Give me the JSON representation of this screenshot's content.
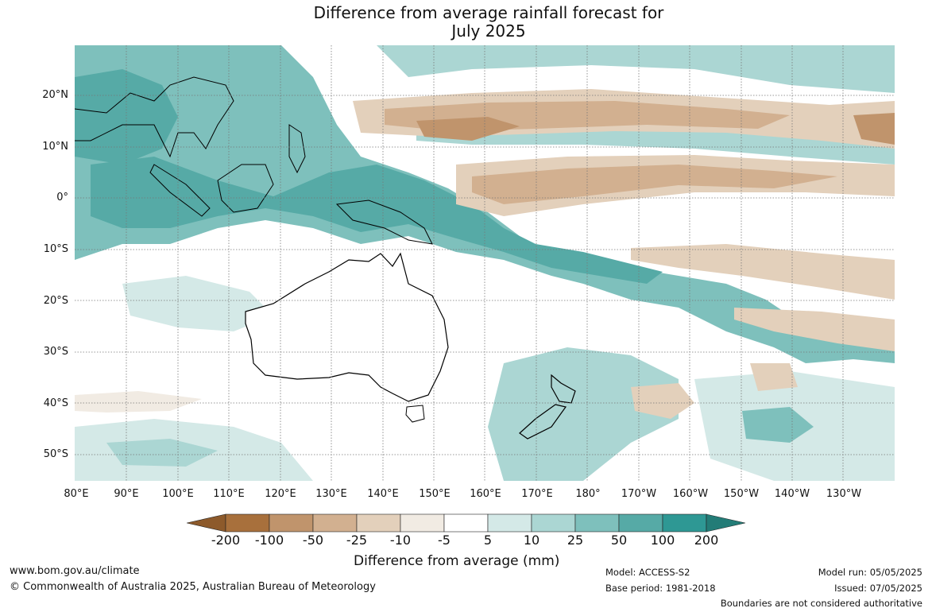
{
  "title": {
    "line1": "Difference from average rainfall forecast for",
    "line2": "July 2025"
  },
  "lat_labels": [
    "20°N",
    "10°N",
    "0°",
    "10°S",
    "20°S",
    "30°S",
    "40°S",
    "50°S"
  ],
  "lon_labels": [
    "80°E",
    "90°E",
    "100°E",
    "110°E",
    "120°E",
    "130°E",
    "140°E",
    "150°E",
    "160°E",
    "170°E",
    "180°",
    "170°W",
    "160°W",
    "150°W",
    "140°W",
    "130°W"
  ],
  "colorbar": {
    "ticks": [
      "-200",
      "-100",
      "-50",
      "-25",
      "-10",
      "-5",
      "5",
      "10",
      "25",
      "50",
      "100",
      "200"
    ],
    "label": "Difference from average (mm)",
    "colors": [
      "#a8703c",
      "#c0946c",
      "#d2b090",
      "#e3d0bb",
      "#f1ebe3",
      "#ffffff",
      "#d4e9e7",
      "#abd6d3",
      "#7ec0bc",
      "#56aaa6",
      "#2e9894"
    ],
    "low_extend_color": "#8d5a2b",
    "high_extend_color": "#237c77"
  },
  "footer": {
    "website": "www.bom.gov.au/climate",
    "copyright": "© Commonwealth of Australia 2025, Australian Bureau of Meteorology",
    "model": "Model: ACCESS-S2",
    "base_period": "Base period: 1981-2018",
    "model_run": "Model run: 05/05/2025",
    "issued": "Issued: 07/05/2025",
    "disclaimer": "Boundaries are not considered authoritative"
  }
}
